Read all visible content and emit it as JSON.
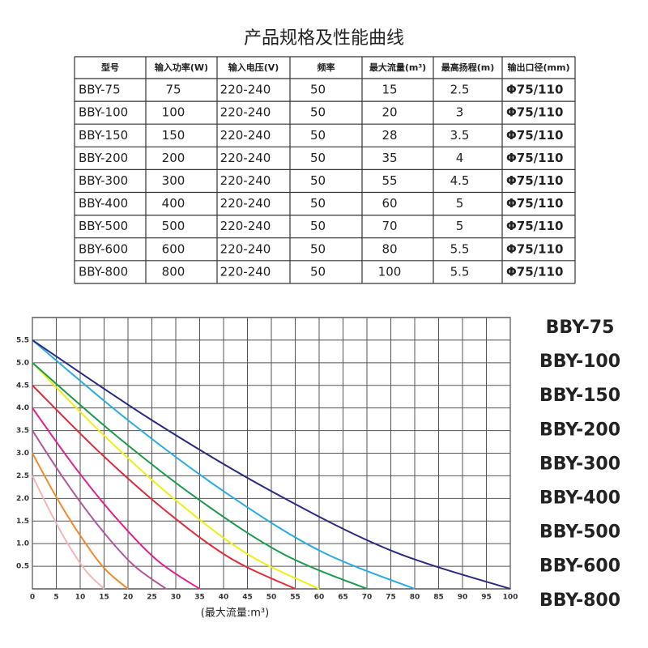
{
  "title": "产品规格及性能曲线",
  "table": {
    "header": [
      "型号",
      "输入功率(W)",
      "输入电压(V)",
      "频率",
      "最大流量(m³)",
      "最高扬程(m)",
      "输出口径(mm)"
    ],
    "rows": [
      [
        "BBY-75",
        "75",
        "220-240",
        "50",
        "15",
        "2.5",
        "Φ75/110"
      ],
      [
        "BBY-100",
        "100",
        "220-240",
        "50",
        "20",
        "3",
        "Φ75/110"
      ],
      [
        "BBY-150",
        "150",
        "220-240",
        "50",
        "28",
        "3.5",
        "Φ75/110"
      ],
      [
        "BBY-200",
        "200",
        "220-240",
        "50",
        "35",
        "4",
        "Φ75/110"
      ],
      [
        "BBY-300",
        "300",
        "220-240",
        "50",
        "55",
        "4.5",
        "Φ75/110"
      ],
      [
        "BBY-400",
        "400",
        "220-240",
        "50",
        "60",
        "5",
        "Φ75/110"
      ],
      [
        "BBY-500",
        "500",
        "220-240",
        "50",
        "70",
        "5",
        "Φ75/110"
      ],
      [
        "BBY-600",
        "600",
        "220-240",
        "50",
        "80",
        "5.5",
        "Φ75/110"
      ],
      [
        "BBY-800",
        "800",
        "220-240",
        "50",
        "100",
        "5.5",
        "Φ75/110"
      ]
    ]
  },
  "chart_data": {
    "type": "line",
    "x_label": "(最大流量:m³)",
    "xlim": [
      0,
      100
    ],
    "ylim": [
      0,
      6
    ],
    "xticks": [
      0,
      5,
      10,
      15,
      20,
      25,
      30,
      35,
      40,
      45,
      50,
      55,
      60,
      65,
      70,
      75,
      80,
      85,
      90,
      95,
      100
    ],
    "yticks": [
      0.5,
      {
        "value": 1,
        "label": "1.0"
      },
      1.5,
      {
        "value": 2,
        "label": "2.0"
      },
      2.5,
      {
        "value": 3,
        "label": "3.0"
      },
      3.5,
      {
        "value": 4,
        "label": "4.0"
      },
      4.5,
      {
        "value": 5,
        "label": "5.0"
      },
      5.5
    ],
    "grid": true,
    "series": [
      {
        "name": "BBY-75",
        "color": "#f4b6b6",
        "x": [
          0,
          3.75,
          7.5,
          11.25,
          15
        ],
        "values": [
          2.5,
          1.7,
          0.98,
          0.39,
          0
        ]
      },
      {
        "name": "BBY-100",
        "color": "#f08a2a",
        "x": [
          0,
          5,
          10,
          15,
          20
        ],
        "values": [
          3,
          2.03,
          1.18,
          0.46,
          0
        ]
      },
      {
        "name": "BBY-150",
        "color": "#b0589a",
        "x": [
          0,
          7,
          14,
          21,
          28
        ],
        "values": [
          3.5,
          2.37,
          1.37,
          0.54,
          0
        ]
      },
      {
        "name": "BBY-200",
        "color": "#e0208c",
        "x": [
          0,
          8.75,
          17.5,
          26.25,
          35
        ],
        "values": [
          4,
          2.71,
          1.57,
          0.62,
          0
        ]
      },
      {
        "name": "BBY-300",
        "color": "#e02a3a",
        "x": [
          0,
          13.75,
          27.5,
          41.25,
          55
        ],
        "values": [
          4.5,
          3.05,
          1.76,
          0.69,
          0
        ]
      },
      {
        "name": "BBY-400",
        "color": "#eeee1a",
        "x": [
          0,
          15,
          30,
          45,
          60
        ],
        "values": [
          5,
          3.39,
          1.96,
          0.77,
          0
        ]
      },
      {
        "name": "BBY-500",
        "color": "#1a9a4a",
        "x": [
          0,
          17.5,
          35,
          52.5,
          70
        ],
        "values": [
          5,
          3.39,
          1.96,
          0.77,
          0
        ]
      },
      {
        "name": "BBY-600",
        "color": "#2aaae0",
        "x": [
          0,
          20,
          40,
          60,
          80
        ],
        "values": [
          5.5,
          3.73,
          2.16,
          0.85,
          0
        ]
      },
      {
        "name": "BBY-800",
        "color": "#2a2a80",
        "x": [
          0,
          25,
          50,
          75,
          100
        ],
        "values": [
          5.5,
          3.73,
          2.16,
          0.85,
          0
        ]
      }
    ]
  }
}
